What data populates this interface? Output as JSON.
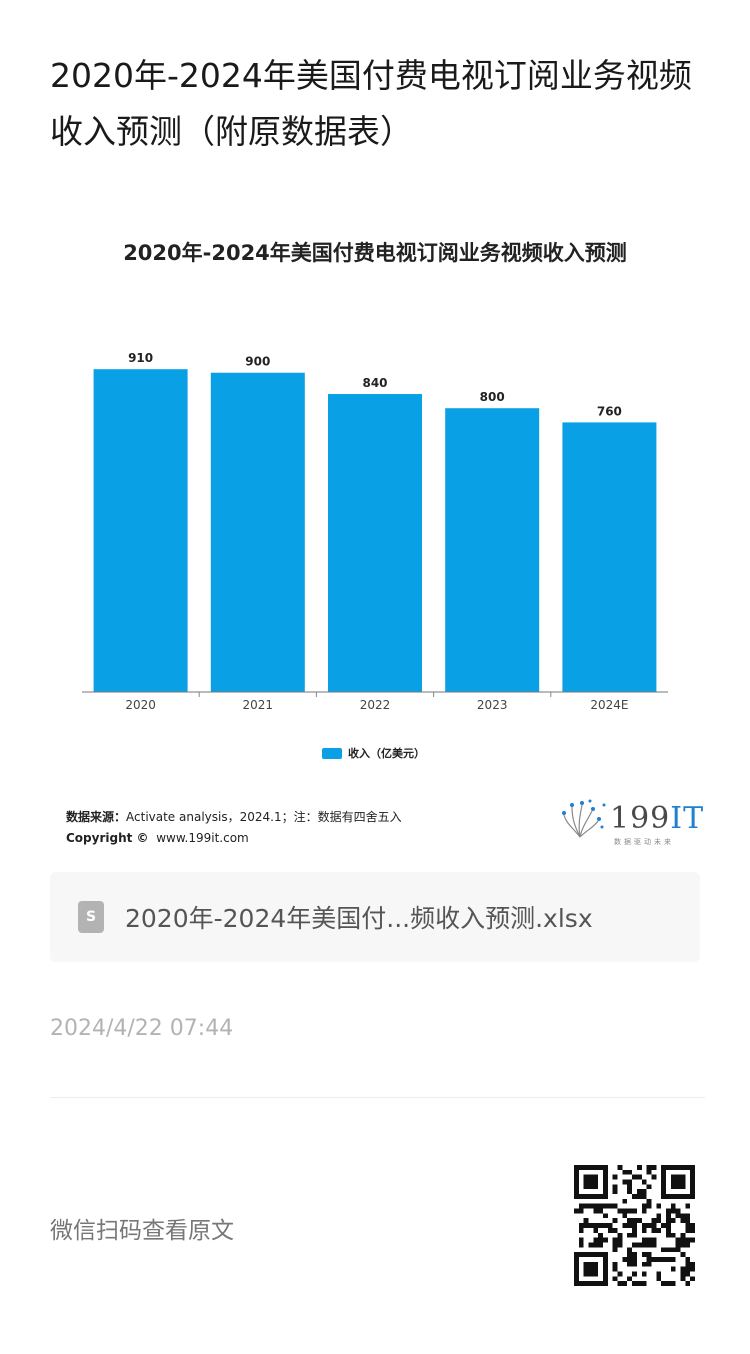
{
  "article": {
    "title": "2020年-2024年美国付费电视订阅业务视频收入预测（附原数据表）"
  },
  "chart_data": {
    "type": "bar",
    "title": "2020年-2024年美国付费电视订阅业务视频收入预测",
    "categories": [
      "2020",
      "2021",
      "2022",
      "2023",
      "2024E"
    ],
    "series": [
      {
        "name": "收入（亿美元）",
        "values": [
          910,
          900,
          840,
          800,
          760
        ],
        "color": "#0aa0e5"
      }
    ],
    "value_labels": [
      "910",
      "900",
      "840",
      "800",
      "760"
    ],
    "ylim": [
      0,
      950
    ],
    "grid": false,
    "legend_position": "bottom"
  },
  "source": {
    "label": "数据来源：",
    "text": "Activate analysis，2024.1；注：数据有四舍五入",
    "copyright_label": "Copyright ©",
    "copyright_site": "www.199it.com"
  },
  "logo": {
    "main": "199",
    "accent": "IT",
    "tagline": "数据驱动未来"
  },
  "file": {
    "icon": "S",
    "name": "2020年-2024年美国付...频收入预测.xlsx"
  },
  "timestamp": "2024/4/22 07:44",
  "footer": {
    "read_original": "微信扫码查看原文"
  }
}
